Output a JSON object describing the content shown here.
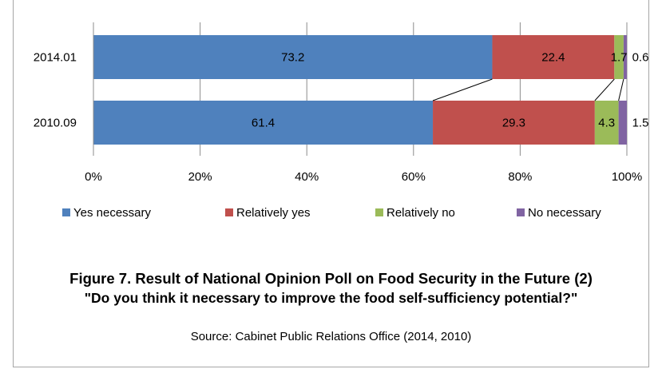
{
  "chart_data": {
    "type": "bar",
    "orientation": "horizontal",
    "stacked": "percent",
    "categories": [
      "2014.01",
      "2010.09"
    ],
    "series": [
      {
        "name": "Yes necessary",
        "color": "#4f81bd",
        "values": [
          73.2,
          61.4
        ]
      },
      {
        "name": "Relatively yes",
        "color": "#c0504d",
        "values": [
          22.4,
          29.3
        ]
      },
      {
        "name": "Relatively no",
        "color": "#9bbb59",
        "values": [
          1.7,
          4.3
        ]
      },
      {
        "name": "No necessary",
        "color": "#8064a2",
        "values": [
          0.6,
          1.5
        ]
      }
    ],
    "data_labels": [
      [
        "73.2",
        "22.4",
        "1.7",
        "0.6"
      ],
      [
        "61.4",
        "29.3",
        "4.3",
        "1.5"
      ]
    ],
    "xlim": [
      0,
      100
    ],
    "x_ticks": [
      "0%",
      "20%",
      "40%",
      "60%",
      "80%",
      "100%"
    ],
    "grid": true,
    "series_lines": true,
    "legend_position": "bottom"
  },
  "figure": {
    "title": "Figure 7. Result of National Opinion Poll on Food Security in the Future (2)",
    "subtitle": "\"Do you think it necessary to improve the food self-sufficiency potential?\"",
    "source": "Source: Cabinet Public Relations Office (2014, 2010)"
  }
}
